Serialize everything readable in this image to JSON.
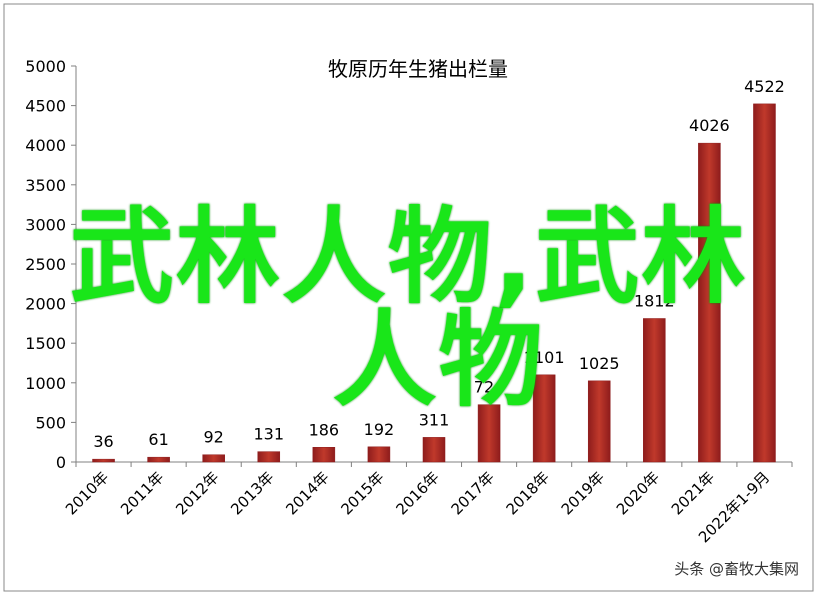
{
  "chart_data": {
    "type": "bar",
    "title": "牧原历年生猪出栏量",
    "categories": [
      "2010年",
      "2011年",
      "2012年",
      "2013年",
      "2014年",
      "2015年",
      "2016年",
      "2017年",
      "2018年",
      "2019年",
      "2020年",
      "2021年",
      "2022年1-9月"
    ],
    "values": [
      36,
      61,
      92,
      131,
      186,
      192,
      311,
      724,
      1101,
      1025,
      1812,
      4026,
      4522
    ],
    "data_labels": [
      "36",
      "61",
      "92",
      "131",
      "186",
      "192",
      "311",
      "724",
      "1101",
      "1025",
      "1812",
      "4026",
      "4522"
    ],
    "ylim": [
      0,
      5000
    ],
    "yticks": [
      "0",
      "500",
      "1000",
      "1500",
      "2000",
      "2500",
      "3000",
      "3500",
      "4000",
      "4500",
      "5000"
    ],
    "xlabel": "",
    "ylabel": "",
    "grid": false,
    "legend": "none",
    "bar_color": "#c0392b",
    "bar_color_dark": "#8e1c1c"
  },
  "watermark": {
    "line1": "武林人物,武林",
    "line2": "人物",
    "color": "#19e619"
  },
  "credit": "头条 @畜牧大集网"
}
